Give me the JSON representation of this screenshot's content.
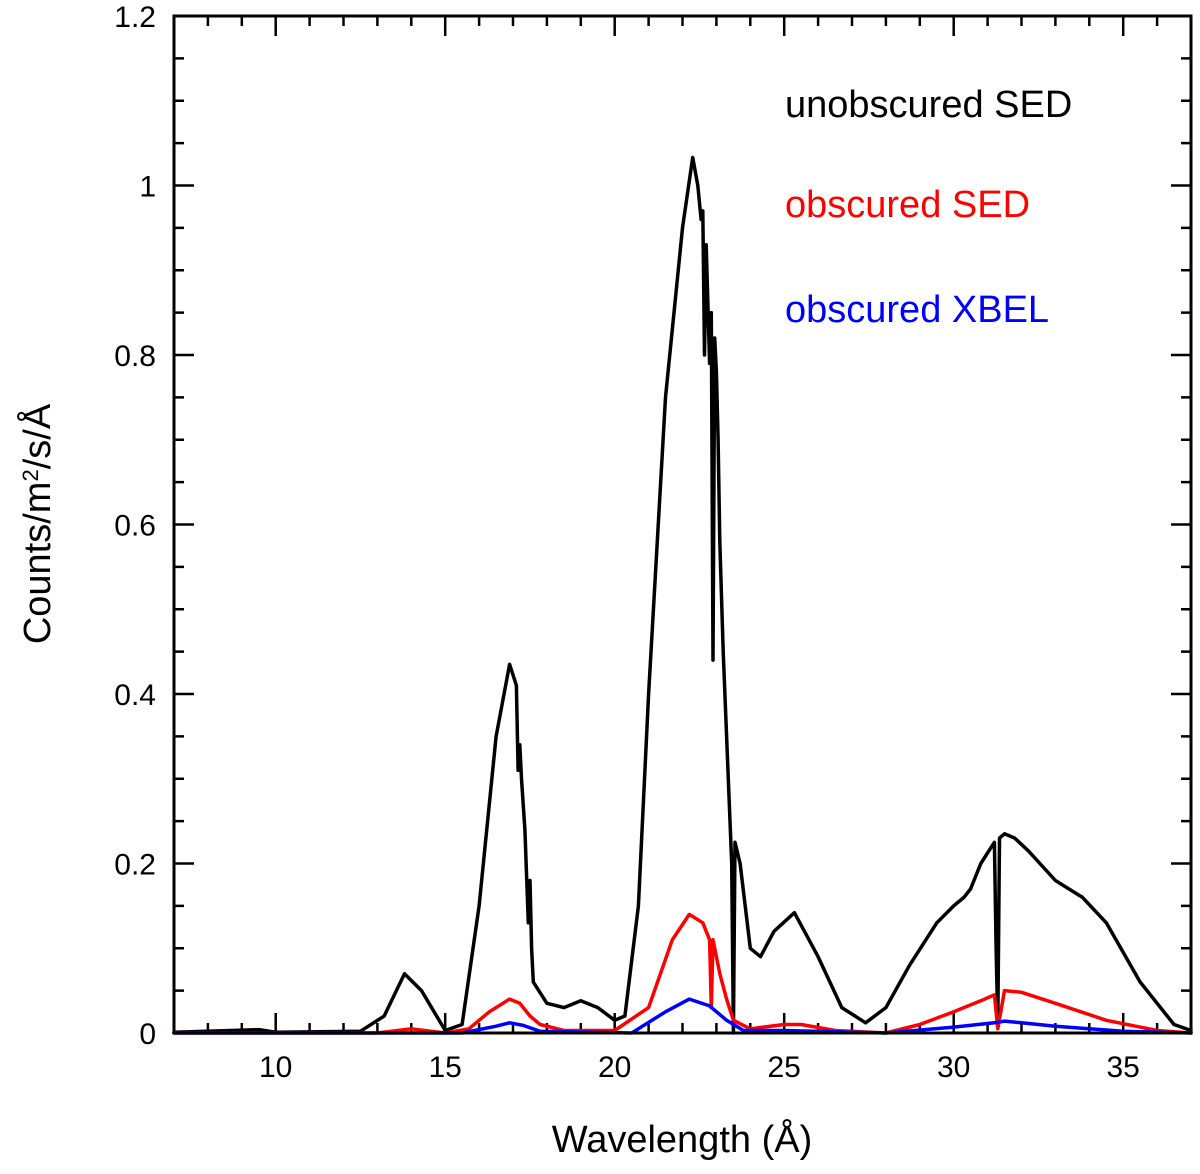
{
  "chart_data": {
    "type": "line",
    "title": "",
    "xlabel": "Wavelength (Å)",
    "ylabel_parts": {
      "prefix": "Counts/m",
      "superscript": "2",
      "suffix": "/s/Å"
    },
    "xlim": [
      7,
      37
    ],
    "ylim": [
      0,
      1.2
    ],
    "x_major_ticks": [
      10,
      15,
      20,
      25,
      30,
      35
    ],
    "x_tick_labels": [
      "10",
      "15",
      "20",
      "25",
      "30",
      "35"
    ],
    "x_minor_step": 1,
    "y_major_ticks": [
      0,
      0.2,
      0.4,
      0.6,
      0.8,
      1.0,
      1.2
    ],
    "y_tick_labels": [
      "0",
      "0.2",
      "0.4",
      "0.6",
      "0.8",
      "1",
      "1.2"
    ],
    "y_minor_step": 0.05,
    "legend_placement": "top-right",
    "series": [
      {
        "name": "unobscured SED",
        "color": "#000000",
        "x": [
          7,
          9.5,
          10,
          12.5,
          13.2,
          13.8,
          14.3,
          15,
          15.5,
          16,
          16.5,
          16.9,
          17.1,
          17.15,
          17.2,
          17.25,
          17.35,
          17.45,
          17.5,
          17.55,
          17.6,
          18,
          18.5,
          19,
          19.5,
          20,
          20.3,
          20.7,
          21,
          21.5,
          22,
          22.3,
          22.45,
          22.55,
          22.6,
          22.65,
          22.7,
          22.75,
          22.8,
          22.85,
          22.9,
          22.95,
          23,
          23.05,
          23.1,
          23.2,
          23.35,
          23.45,
          23.5,
          23.55,
          23.7,
          24,
          24.3,
          24.7,
          25.3,
          26,
          26.7,
          27.4,
          28,
          28.7,
          29.5,
          30,
          30.3,
          30.5,
          30.8,
          31.2,
          31.25,
          31.3,
          31.35,
          31.5,
          31.8,
          32.2,
          33,
          33.8,
          34.5,
          35.5,
          36.5,
          37
        ],
        "y": [
          0.001,
          0.004,
          0.001,
          0.002,
          0.02,
          0.07,
          0.05,
          0.003,
          0.01,
          0.15,
          0.35,
          0.435,
          0.41,
          0.31,
          0.34,
          0.3,
          0.24,
          0.13,
          0.18,
          0.1,
          0.06,
          0.035,
          0.03,
          0.038,
          0.03,
          0.015,
          0.02,
          0.15,
          0.4,
          0.75,
          0.95,
          1.033,
          1.0,
          0.96,
          0.97,
          0.8,
          0.93,
          0.86,
          0.79,
          0.85,
          0.44,
          0.82,
          0.78,
          0.7,
          0.58,
          0.45,
          0.3,
          0.2,
          0.0,
          0.225,
          0.2,
          0.1,
          0.09,
          0.12,
          0.142,
          0.09,
          0.03,
          0.012,
          0.03,
          0.08,
          0.13,
          0.15,
          0.16,
          0.17,
          0.2,
          0.225,
          0.1,
          0.01,
          0.23,
          0.235,
          0.23,
          0.215,
          0.18,
          0.16,
          0.13,
          0.06,
          0.01,
          0.003
        ]
      },
      {
        "name": "obscured SED",
        "color": "#ff0000",
        "x": [
          7,
          13,
          14,
          15,
          15.7,
          16.3,
          16.9,
          17.2,
          17.5,
          17.8,
          18.5,
          20,
          21,
          21.7,
          22.2,
          22.6,
          22.8,
          22.85,
          22.9,
          22.95,
          23.1,
          23.3,
          23.5,
          24,
          25,
          25.5,
          26.5,
          28,
          29,
          30,
          30.8,
          31.2,
          31.3,
          31.5,
          32,
          33,
          34.5,
          36,
          37
        ],
        "y": [
          0.0,
          0.0,
          0.005,
          0.0,
          0.005,
          0.025,
          0.04,
          0.035,
          0.02,
          0.01,
          0.003,
          0.003,
          0.03,
          0.11,
          0.14,
          0.13,
          0.11,
          0.03,
          0.11,
          0.1,
          0.07,
          0.04,
          0.015,
          0.005,
          0.01,
          0.01,
          0.003,
          0.0,
          0.01,
          0.025,
          0.038,
          0.045,
          0.005,
          0.05,
          0.048,
          0.035,
          0.015,
          0.003,
          0.0
        ]
      },
      {
        "name": "obscured XBEL",
        "color": "#0000ff",
        "x": [
          7,
          15.5,
          16.5,
          16.9,
          17.3,
          17.8,
          20.5,
          21.5,
          22.2,
          22.8,
          23.3,
          23.8,
          25,
          28,
          30,
          31.2,
          31.5,
          32,
          33,
          35,
          37
        ],
        "y": [
          0.0,
          0.0,
          0.008,
          0.012,
          0.009,
          0.002,
          0.0,
          0.025,
          0.04,
          0.032,
          0.015,
          0.003,
          0.003,
          0.0,
          0.007,
          0.012,
          0.014,
          0.012,
          0.008,
          0.002,
          0.0
        ]
      }
    ]
  }
}
